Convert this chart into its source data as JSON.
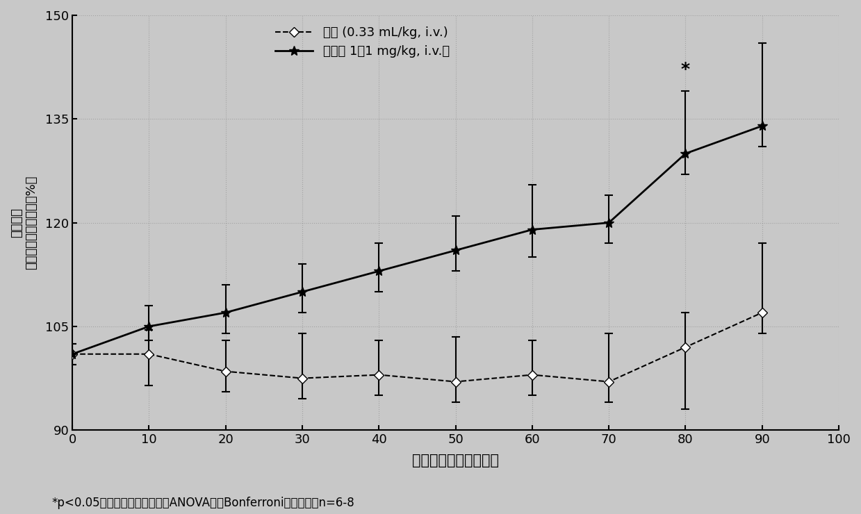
{
  "x": [
    0,
    10,
    20,
    30,
    40,
    50,
    60,
    70,
    80,
    90
  ],
  "vehicle_y": [
    101,
    101,
    98.5,
    97.5,
    98,
    97,
    98,
    97,
    102,
    107
  ],
  "vehicle_yerr_upper": [
    1.5,
    3.5,
    4.5,
    6.5,
    5,
    6.5,
    5,
    7,
    5,
    10
  ],
  "vehicle_yerr_lower": [
    1.5,
    4.5,
    3,
    3,
    3,
    3,
    3,
    3,
    9,
    3
  ],
  "example_y": [
    101,
    105,
    107,
    110,
    113,
    116,
    119,
    120,
    130,
    134
  ],
  "example_yerr_upper": [
    1.5,
    3,
    4,
    4,
    4,
    5,
    6.5,
    4,
    9,
    12
  ],
  "example_yerr_lower": [
    1.5,
    2,
    3,
    3,
    3,
    3,
    4,
    3,
    3,
    3
  ],
  "xlim": [
    0,
    100
  ],
  "ylim": [
    90,
    150
  ],
  "yticks": [
    90,
    105,
    120,
    135,
    150
  ],
  "xticks": [
    0,
    10,
    20,
    30,
    40,
    50,
    60,
    70,
    80,
    90,
    100
  ],
  "xlabel": "时间（输注后分钓数）",
  "ylabel_line1": "脑血流量",
  "ylabel_line2": "（相对于基础血流量的%）",
  "legend1": "载剂 (0.33 mL/kg, i.v.)",
  "legend2": "实施例 1（1 mg/kg, i.v.）",
  "footnote": "*p<0.05，相对于载剂，双因素ANOVA随后Bonferroni事后检验，n=6-8",
  "star_x": 80,
  "star_y": 141,
  "bg_color": "#c8c8c8",
  "plot_bg_color": "#c8c8c8",
  "line_color": "#000000",
  "vehicle_color": "#333333",
  "example_color": "#000000"
}
